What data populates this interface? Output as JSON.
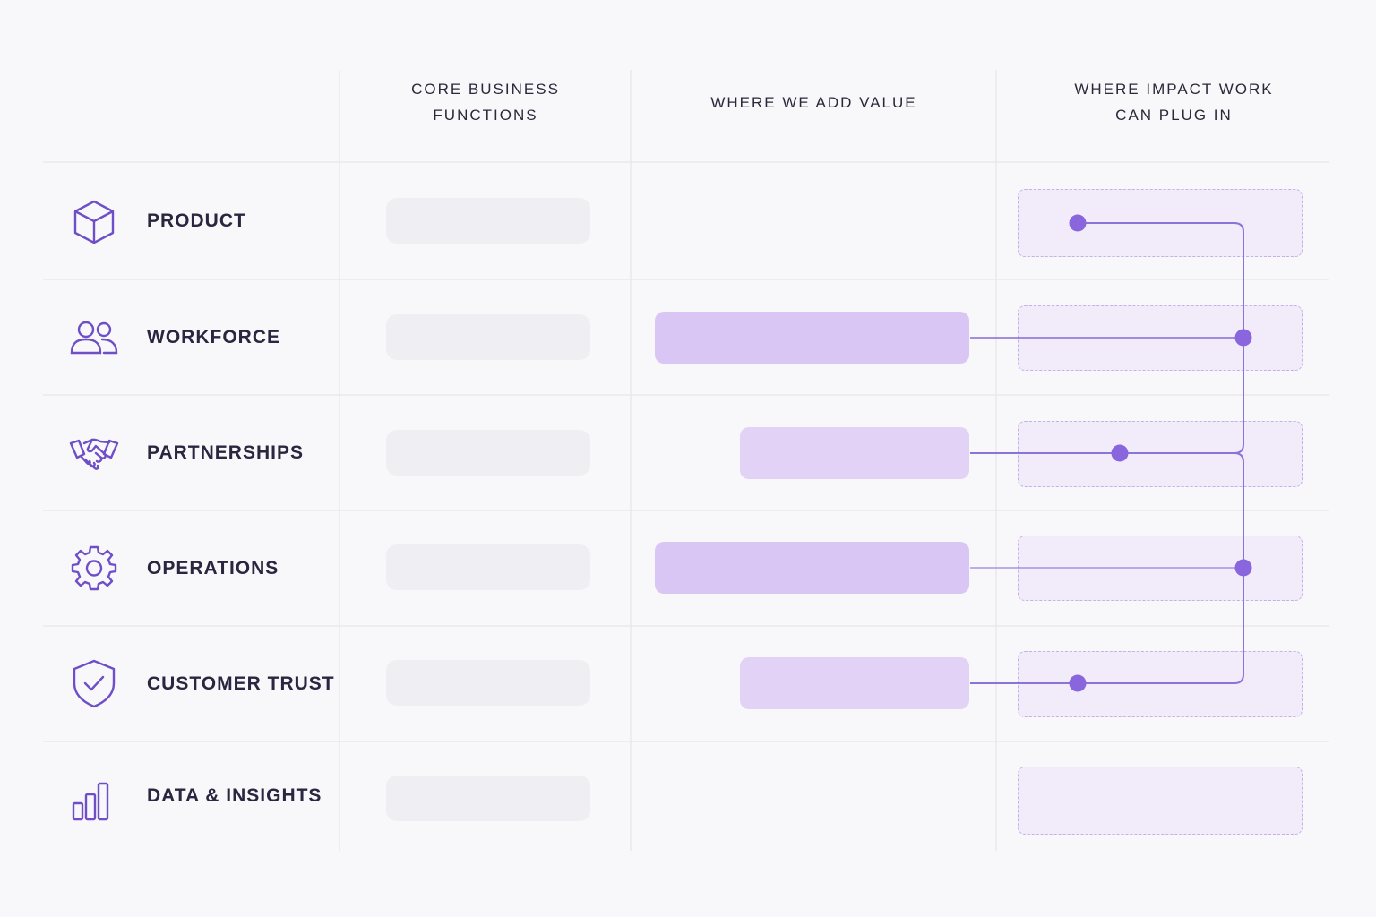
{
  "headers": {
    "core": "CORE BUSINESS\nFUNCTIONS",
    "value": "WHERE WE ADD VALUE",
    "plug": "WHERE IMPACT WORK\nCAN PLUG IN"
  },
  "rows": [
    {
      "label": "PRODUCT",
      "icon": "cube-icon",
      "adds_value": false,
      "value_bar_share": 0,
      "connected": true
    },
    {
      "label": "WORKFORCE",
      "icon": "people-icon",
      "adds_value": true,
      "value_bar_share": 1.0,
      "connected": true
    },
    {
      "label": "PARTNERSHIPS",
      "icon": "handshake-icon",
      "adds_value": true,
      "value_bar_share": 0.73,
      "connected": true
    },
    {
      "label": "OPERATIONS",
      "icon": "gear-icon",
      "adds_value": true,
      "value_bar_share": 1.0,
      "connected": true
    },
    {
      "label": "CUSTOMER TRUST",
      "icon": "shield-check-icon",
      "adds_value": true,
      "value_bar_share": 0.73,
      "connected": true
    },
    {
      "label": "DATA & INSIGHTS",
      "icon": "bar-chart-icon",
      "adds_value": false,
      "value_bar_share": 0,
      "connected": false
    }
  ],
  "colors": {
    "accent": "#7b5fd6",
    "accent_light": "#dcc9f5",
    "dot": "#8a66de",
    "line": "#8c73d8",
    "pill": "#efeef2",
    "plug_fill": "#f1ebfa",
    "plug_border": "#c5b0ea",
    "background": "#f8f7f9",
    "grid": "#e8e6ec"
  }
}
